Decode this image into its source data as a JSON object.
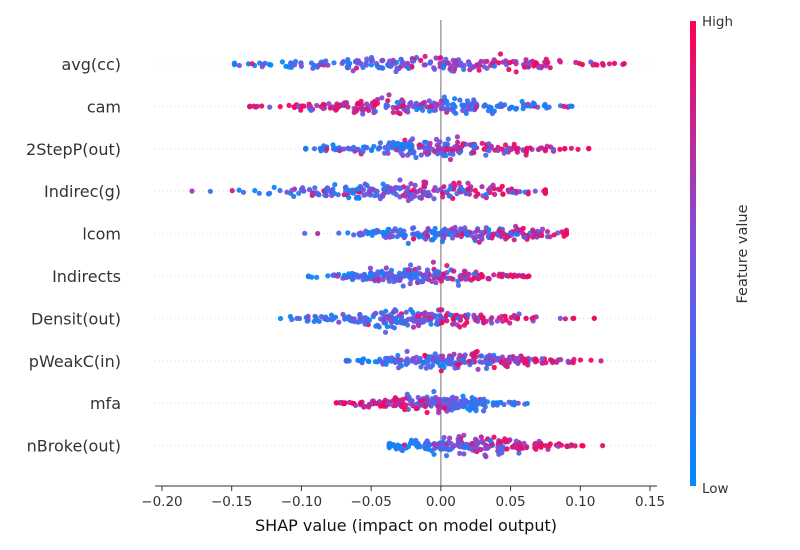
{
  "chart_data": {
    "type": "scatter",
    "subtype": "shap-beeswarm",
    "xlabel": "SHAP value (impact on model output)",
    "xlim": [
      -0.205,
      0.155
    ],
    "xticks": [
      -0.2,
      -0.15,
      -0.1,
      -0.05,
      0.0,
      0.05,
      0.1,
      0.15
    ],
    "xtick_labels": [
      "−0.20",
      "−0.15",
      "−0.10",
      "−0.05",
      "0.00",
      "0.05",
      "0.10",
      "0.15"
    ],
    "colorbar": {
      "title": "Feature value",
      "high_label": "High",
      "low_label": "Low",
      "low_color": "#008bfb",
      "high_color": "#ff0052"
    },
    "features": [
      {
        "name": "avg(cc)",
        "min": -0.148,
        "max": 0.136,
        "low_side": "negative",
        "center_low": -0.1,
        "center_high": 0.07
      },
      {
        "name": "cam",
        "min": -0.137,
        "max": 0.094,
        "low_side": "positive",
        "center_low": 0.05,
        "center_high": -0.09
      },
      {
        "name": "2StepP(out)",
        "min": -0.097,
        "max": 0.106,
        "low_side": "negative",
        "center_low": -0.05,
        "center_high": 0.04
      },
      {
        "name": "Indirec(g)",
        "min": -0.19,
        "max": 0.075,
        "low_side": "negative",
        "center_low": -0.08,
        "center_high": 0.03
      },
      {
        "name": "lcom",
        "min": -0.11,
        "max": 0.09,
        "low_side": "negative",
        "center_low": -0.03,
        "center_high": 0.06
      },
      {
        "name": "Indirects",
        "min": -0.095,
        "max": 0.063,
        "low_side": "negative",
        "center_low": -0.06,
        "center_high": 0.03
      },
      {
        "name": "Densit(out)",
        "min": -0.115,
        "max": 0.11,
        "low_side": "negative",
        "center_low": -0.06,
        "center_high": 0.025
      },
      {
        "name": "pWeakC(in)",
        "min": -0.072,
        "max": 0.122,
        "low_side": "negative",
        "center_low": -0.03,
        "center_high": 0.06
      },
      {
        "name": "mfa",
        "min": -0.075,
        "max": 0.062,
        "low_side": "positive",
        "center_low": 0.03,
        "center_high": -0.04
      },
      {
        "name": "nBroke(out)",
        "min": -0.037,
        "max": 0.116,
        "low_side": "negative",
        "center_low": -0.02,
        "center_high": 0.06
      }
    ]
  }
}
